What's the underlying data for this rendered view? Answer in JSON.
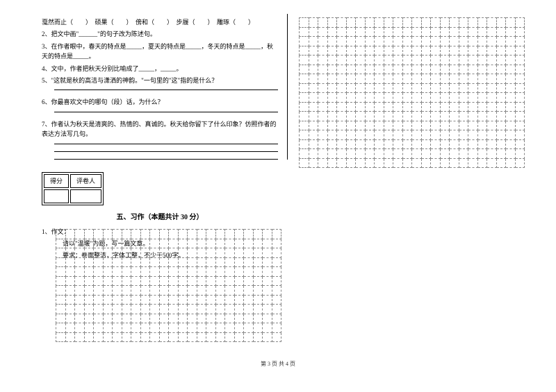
{
  "questions": {
    "q1_prefix": "戛然而止（　　）　硕果（　　）　傍和（　　）　步履（　　）　雕琢（　　）",
    "q2": "2、把文中画\"______\"的句子改为陈述句。",
    "q3": "3、在作者眼中，春天的特点是_____，夏天的特点是_____，冬天的特点是_____，秋天的特点是_____。",
    "q4": "4、文中，作者把秋天分别比喻成了_____，_____。",
    "q5": "5、\"这就是秋的高洁与潇洒的神韵。\"一句里的\"这\"指的是什么？",
    "q6": "6、你最喜欢文中的哪句（段）话，为什么？",
    "q7": "7、作者认为秋天是清爽的、热情的、真诚的。秋天给你留下了什么印象？仿照作者的表达方法写几句。"
  },
  "scoreBox": {
    "label1": "得分",
    "label2": "评卷人"
  },
  "section": {
    "title": "五、习作（本题共计 30 分）"
  },
  "composition": {
    "heading": "1、作文：",
    "line1": "请以\"温暖\"为题，写一篇文章。",
    "line2": "要求：卷面整洁，字体工整，不少于500字。"
  },
  "footer": "第 3 页 共 4 页",
  "grid": {
    "topRows": 16,
    "topCols": 24,
    "bottomRows": 12,
    "bottomCols": 24
  }
}
